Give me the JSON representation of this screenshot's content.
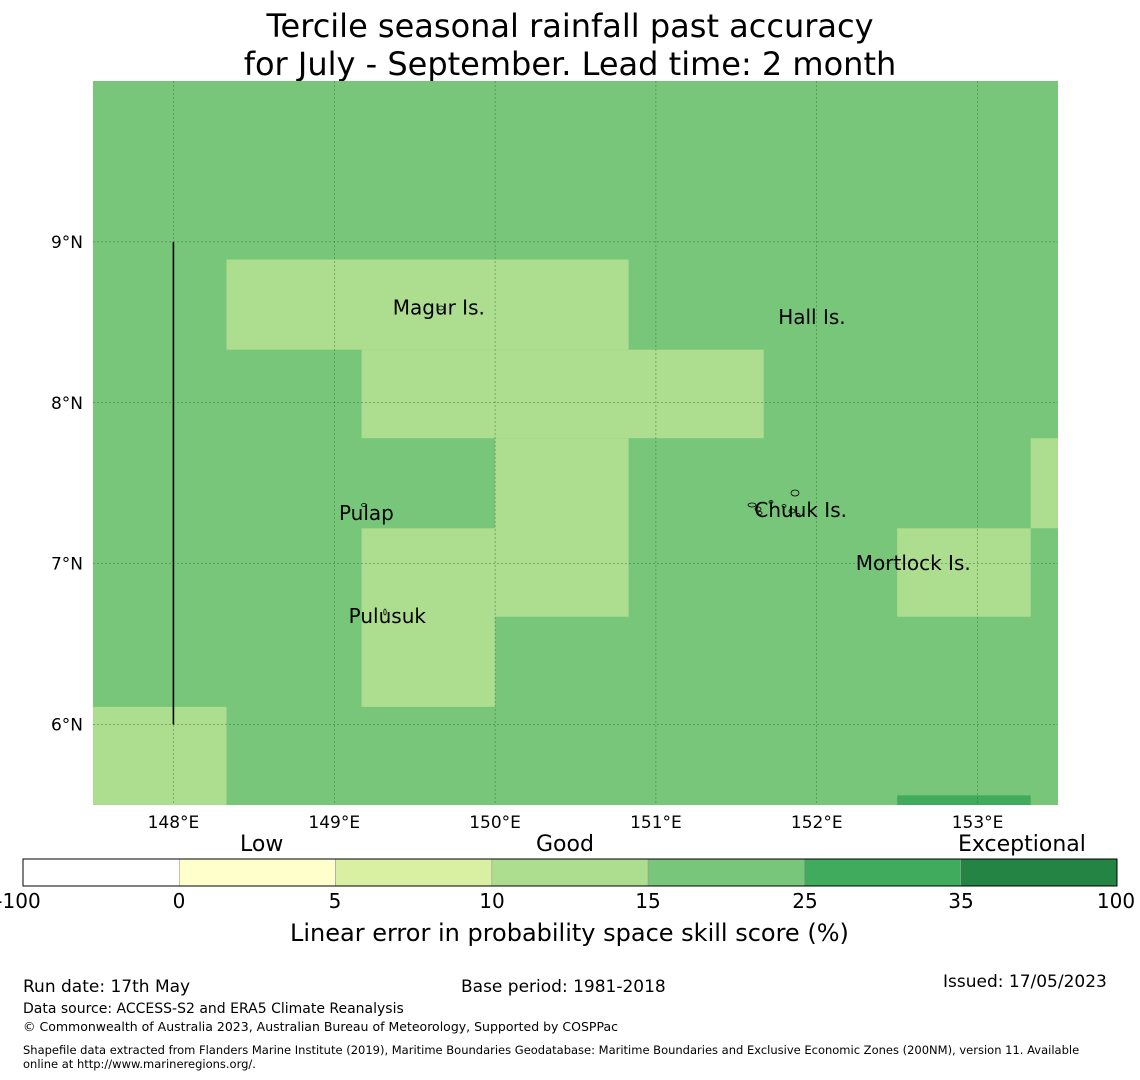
{
  "title": {
    "line1": "Tercile seasonal rainfall past accuracy",
    "line2": "for July - September. Lead time: 2 month"
  },
  "map": {
    "lon_range": [
      147.5,
      153.5
    ],
    "lat_range": [
      5.5,
      10.0
    ],
    "lon_ticks": [
      "148°E",
      "149°E",
      "150°E",
      "151°E",
      "152°E",
      "153°E"
    ],
    "lat_ticks": [
      "9°N",
      "8°N",
      "7°N",
      "6°N"
    ],
    "base_color": "#78c679",
    "grid_cells": [
      {
        "lon0": 148.33,
        "lon1": 150.83,
        "lat0": 8.33,
        "lat1": 8.89,
        "color": "#addd8e"
      },
      {
        "lon0": 149.17,
        "lon1": 151.67,
        "lat0": 7.78,
        "lat1": 8.33,
        "color": "#addd8e"
      },
      {
        "lon0": 150.0,
        "lon1": 150.83,
        "lat0": 6.67,
        "lat1": 7.78,
        "color": "#addd8e"
      },
      {
        "lon0": 149.17,
        "lon1": 150.0,
        "lat0": 6.11,
        "lat1": 7.22,
        "color": "#addd8e"
      },
      {
        "lon0": 147.5,
        "lon1": 148.33,
        "lat0": 5.5,
        "lat1": 6.11,
        "color": "#addd8e"
      },
      {
        "lon0": 152.5,
        "lon1": 153.33,
        "lat0": 6.67,
        "lat1": 7.22,
        "color": "#addd8e"
      },
      {
        "lon0": 153.33,
        "lon1": 153.5,
        "lat0": 7.22,
        "lat1": 7.78,
        "color": "#addd8e"
      },
      {
        "lon0": 152.5,
        "lon1": 153.33,
        "lat0": 5.5,
        "lat1": 5.56,
        "color": "#41ab5d"
      }
    ],
    "boundary_line": {
      "lon": 148.0,
      "lat0": 6.0,
      "lat1": 9.0
    },
    "places": [
      {
        "name": "Magur Is.",
        "lon": 149.65,
        "lat": 8.55
      },
      {
        "name": "Hall Is.",
        "lon": 151.97,
        "lat": 8.49
      },
      {
        "name": "Pulap",
        "lon": 149.2,
        "lat": 7.27
      },
      {
        "name": "Chuuk Is.",
        "lon": 151.9,
        "lat": 7.29
      },
      {
        "name": "Mortlock Is.",
        "lon": 152.6,
        "lat": 6.96
      },
      {
        "name": "Pulusuk",
        "lon": 149.33,
        "lat": 6.63
      }
    ]
  },
  "colorbar": {
    "category_labels": [
      "Low",
      "Good",
      "Exceptional"
    ],
    "ticks": [
      "-100",
      "0",
      "5",
      "10",
      "15",
      "25",
      "35",
      "100"
    ],
    "colors": [
      "#ffffff",
      "#ffffcc",
      "#d9f0a3",
      "#addd8e",
      "#78c679",
      "#41ab5d",
      "#238443"
    ],
    "label": "Linear error in probability space skill score (%)"
  },
  "footer": {
    "run_date": "Run date: 17th May",
    "base_period": "Base period: 1981-2018",
    "issued": "Issued: 17/05/2023",
    "data_source": "Data source: ACCESS-S2 and ERA5 Climate Reanalysis",
    "copyright": "© Commonwealth of Australia 2023, Australian Bureau of Meteorology, Supported by COSPPac",
    "shapefile_line1": "Shapefile data extracted from Flanders Marine Institute (2019), Maritime Boundaries Geodatabase: Maritime Boundaries and Exclusive Economic Zones (200NM), version 11. Available",
    "shapefile_line2": "online at http://www.marineregions.org/."
  }
}
